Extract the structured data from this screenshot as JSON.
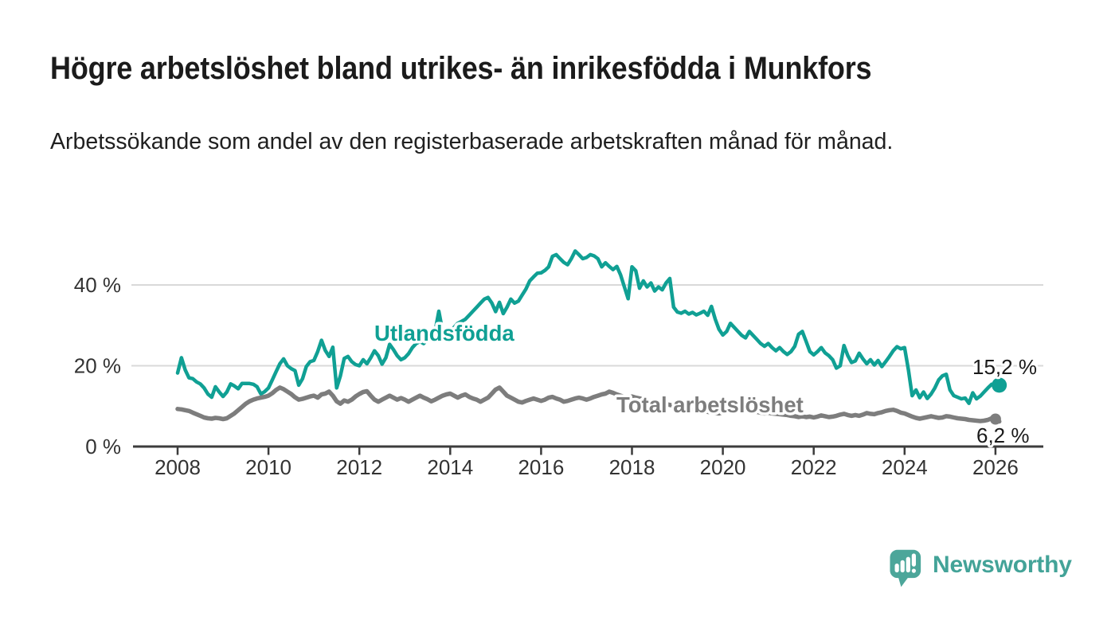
{
  "header": {
    "title": "Högre arbetslöshet bland utrikes- än inrikesfödda i Munkfors",
    "subtitle": "Arbetssökande som andel av den registerbaserade arbetskraften månad för månad.",
    "title_color": "#1b1b1b",
    "subtitle_color": "#202020"
  },
  "chart_data": {
    "type": "line",
    "title": "Högre arbetslöshet bland utrikes- än inrikesfödda i Munkfors",
    "xlabel": "",
    "ylabel": "Arbetssökande som andel av den registerbaserade arbetskraften",
    "x_start": "2008-01",
    "x_end": "2026-02",
    "frequency": "monthly",
    "xticks": [
      2008,
      2010,
      2012,
      2014,
      2016,
      2018,
      2020,
      2022,
      2024,
      2026
    ],
    "yticks": [
      {
        "value": 0,
        "label": "0 %"
      },
      {
        "value": 20,
        "label": "20 %"
      },
      {
        "value": 40,
        "label": "40 %"
      }
    ],
    "ylim": [
      0,
      52
    ],
    "grid": "horizontal",
    "legend_position": "inline-labels",
    "colors": {
      "axis": "#3c3c3c",
      "tick_text": "#333333",
      "gridline": "#d9d9d9",
      "end_label_text": "#1a1a1a"
    },
    "series": [
      {
        "name": "Utlandsfödda",
        "color": "#10A094",
        "end_label": "15,2 %",
        "end_value": 15.2,
        "values": [
          18.2,
          22,
          19,
          17,
          16.8,
          16,
          15.5,
          14.5,
          13,
          12.2,
          14.8,
          13.5,
          12.4,
          13.5,
          15.5,
          15,
          14.3,
          15.6,
          15.6,
          15.6,
          15.4,
          14.8,
          13,
          13.6,
          14.5,
          16.5,
          18.5,
          20.5,
          21.7,
          20,
          19.3,
          18.8,
          15.2,
          16.8,
          19.8,
          21,
          21.3,
          23.5,
          26.3,
          23.8,
          22.3,
          24.6,
          14.5,
          17.5,
          21.8,
          22.3,
          21,
          20.3,
          20,
          21.5,
          20.5,
          22,
          23.7,
          22.5,
          20.4,
          22,
          25.3,
          24,
          22.5,
          21.5,
          22,
          23,
          24.5,
          25.5,
          26,
          25.5,
          26.5,
          27.5,
          28.5,
          33.5,
          28.5,
          28,
          28.5,
          29.5,
          30.5,
          31,
          31.5,
          32.5,
          33.5,
          34.5,
          35.5,
          36.5,
          36.9,
          35.5,
          33.4,
          35.7,
          32.9,
          34.5,
          36.5,
          35.5,
          36,
          37.5,
          39,
          41,
          42,
          42.9,
          43,
          43.6,
          44.5,
          47.1,
          47.5,
          46.5,
          45.6,
          45,
          46.5,
          48.4,
          47.5,
          46.5,
          46.8,
          47.5,
          47.2,
          46.5,
          44.5,
          45.5,
          44.6,
          43.8,
          44.6,
          42.5,
          39.5,
          36.6,
          44.5,
          43.5,
          39.2,
          41,
          39.5,
          40.5,
          38.5,
          39.5,
          38.8,
          40.5,
          41.6,
          34.5,
          33.3,
          33,
          33.5,
          32.8,
          33.2,
          32.6,
          33,
          33.5,
          32.5,
          34.7,
          31.5,
          29,
          27.6,
          28.5,
          30.5,
          29.5,
          28.5,
          27.5,
          26.9,
          28.5,
          27.5,
          26.5,
          25.5,
          24.8,
          25.5,
          24.5,
          23.7,
          24.5,
          23.5,
          22.8,
          23.5,
          24.8,
          27.8,
          28.5,
          26,
          23.5,
          22.7,
          23.5,
          24.5,
          23.2,
          22.5,
          21.5,
          19.4,
          20,
          25,
          22.5,
          20.8,
          21.2,
          23.1,
          21.7,
          20.5,
          21.5,
          20.2,
          21.3,
          19.8,
          21,
          22.3,
          23.7,
          24.7,
          24.2,
          24.5,
          19,
          12.6,
          14,
          12.1,
          13.5,
          11.9,
          13,
          14.5,
          16.5,
          17.5,
          17.9,
          14,
          12.6,
          12.2,
          11.8,
          12,
          10.7,
          13.3,
          11.8,
          12.5,
          13.5,
          14.5,
          15.4,
          14.8,
          15.2
        ]
      },
      {
        "name": "Total arbetslöshet",
        "color": "#7D7D7D",
        "end_label": "6,2 %",
        "end_value": 6.2,
        "values": [
          9.3,
          9.2,
          9,
          8.8,
          8.4,
          8,
          7.6,
          7.2,
          7,
          6.9,
          7.1,
          7,
          6.8,
          7,
          7.6,
          8.2,
          9,
          9.8,
          10.6,
          11.2,
          11.6,
          11.9,
          12.1,
          12.3,
          12.6,
          13.2,
          14,
          14.6,
          14.2,
          13.6,
          13,
          12.2,
          11.6,
          11.8,
          12.1,
          12.4,
          12.6,
          12.1,
          12.9,
          13.1,
          13.6,
          12.6,
          11.2,
          10.6,
          11.4,
          11.1,
          11.6,
          12.4,
          13,
          13.5,
          13.7,
          12.6,
          11.6,
          11.1,
          11.6,
          12.1,
          12.6,
          12.1,
          11.6,
          12,
          11.6,
          11.1,
          11.6,
          12.1,
          12.6,
          12.1,
          11.7,
          11.2,
          11.6,
          12.1,
          12.6,
          12.9,
          13.1,
          12.6,
          12.1,
          12.6,
          12.9,
          12.3,
          11.9,
          11.6,
          11.1,
          11.6,
          12.1,
          13.1,
          14.1,
          14.6,
          13.6,
          12.6,
          12.1,
          11.6,
          11.1,
          10.9,
          11.3,
          11.6,
          11.9,
          11.6,
          11.3,
          11.6,
          12.1,
          12.3,
          11.9,
          11.6,
          11.1,
          11.3,
          11.6,
          11.9,
          12.1,
          11.9,
          11.6,
          11.9,
          12.3,
          12.6,
          12.9,
          13.1,
          13.6,
          13.3,
          12.9,
          12.6,
          12.3,
          12.1,
          12.4,
          12.1,
          11.9,
          11.7,
          11.5,
          11.2,
          11,
          10.8,
          10.6,
          10.5,
          10.3,
          10.1,
          9.9,
          9.6,
          9.5,
          9.3,
          9.1,
          9,
          8.9,
          8.8,
          8.6,
          8.5,
          8.3,
          8.2,
          8.5,
          8.8,
          9.2,
          9.5,
          9.7,
          9.5,
          9.2,
          9,
          8.8,
          8.6,
          8.4,
          8.2,
          8.4,
          8.2,
          8.1,
          8,
          7.9,
          7.8,
          7.6,
          7.5,
          7.3,
          7.5,
          7.3,
          7.4,
          7.2,
          7.4,
          7.7,
          7.5,
          7.3,
          7.4,
          7.6,
          7.9,
          8.1,
          7.8,
          7.6,
          7.8,
          7.6,
          7.9,
          8.3,
          8.1,
          8,
          8.3,
          8.5,
          8.8,
          9,
          9.1,
          8.8,
          8.4,
          8.2,
          7.8,
          7.4,
          7.1,
          6.9,
          7.1,
          7.3,
          7.5,
          7.3,
          7.1,
          7.2,
          7.5,
          7.4,
          7.2,
          7,
          6.9,
          6.8,
          6.6,
          6.5,
          6.4,
          6.3,
          6.4,
          6.6,
          7,
          6.8,
          6.2
        ]
      }
    ]
  },
  "footer": {
    "brand": "Newsworthy",
    "logo_icon_color": "#4CA69A",
    "logo_text_color": "#43A398"
  }
}
